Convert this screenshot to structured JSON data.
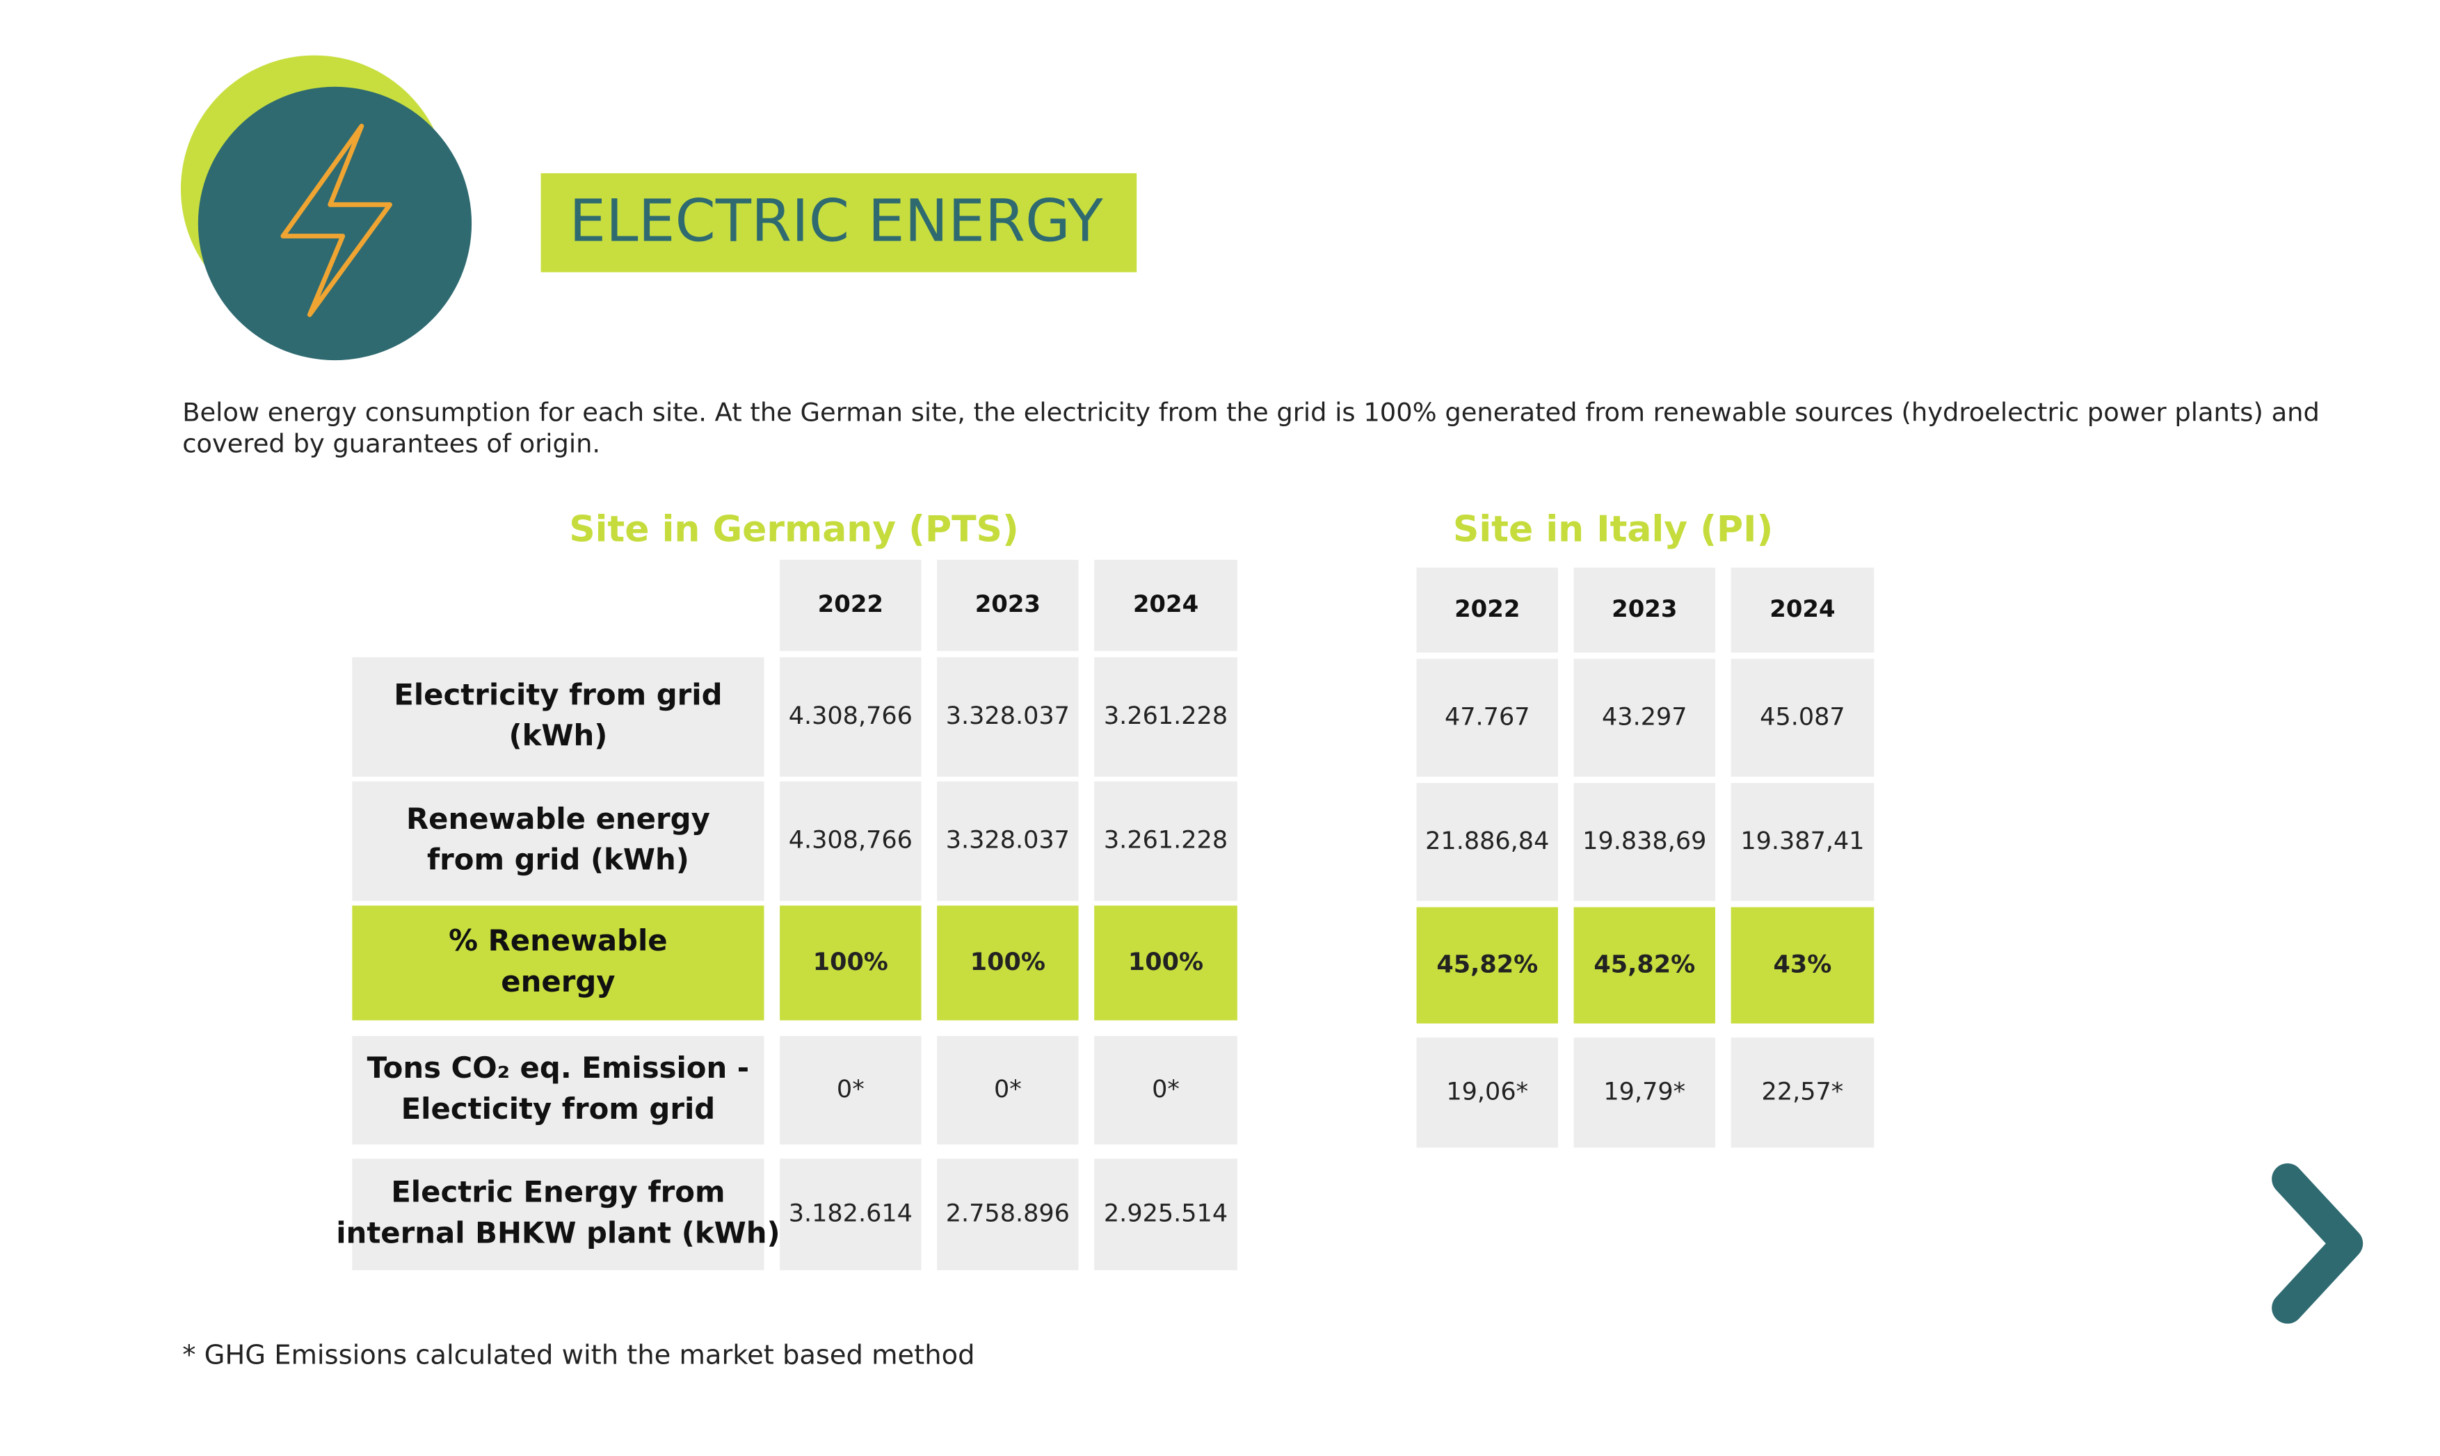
{
  "header": {
    "title": "ELECTRIC ENERGY"
  },
  "intro": [
    "Below energy consumption for each site. At the German site, the electricity from the grid is 100% generated from renewable sources (hydroelectric power plants) and",
    "covered by guarantees of origin."
  ],
  "germany": {
    "title": "Site in Germany (PTS)",
    "years": [
      "2022",
      "2023",
      "2024"
    ],
    "rows": [
      {
        "label": [
          "Electricity from grid",
          "(kWh)"
        ],
        "values": [
          "4.308,766",
          "3.328.037",
          "3.261.228"
        ]
      },
      {
        "label": [
          "Renewable energy",
          "from grid (kWh)"
        ],
        "values": [
          "4.308,766",
          "3.328.037",
          "3.261.228"
        ]
      },
      {
        "label": [
          "% Renewable",
          "energy"
        ],
        "values": [
          "100%",
          "100%",
          "100%"
        ]
      },
      {
        "label": [
          "Tons CO₂ eq. Emission -",
          "Electicity from grid"
        ],
        "values": [
          "0*",
          "0*",
          "0*"
        ]
      },
      {
        "label": [
          "Electric Energy from",
          "internal BHKW plant (kWh)"
        ],
        "values": [
          "3.182.614",
          "2.758.896",
          "2.925.514"
        ]
      }
    ]
  },
  "italy": {
    "title": "Site in Italy (PI)",
    "years": [
      "2022",
      "2023",
      "2024"
    ],
    "rows": [
      {
        "values": [
          "47.767",
          "43.297",
          "45.087"
        ]
      },
      {
        "values": [
          "21.886,84",
          "19.838,69",
          "19.387,41"
        ]
      },
      {
        "values": [
          "45,82%",
          "45,82%",
          "43%"
        ]
      },
      {
        "values": [
          "19,06*",
          "19,79*",
          "22,57*"
        ]
      }
    ]
  },
  "footnote": "* GHG Emissions calculated with the market based method"
}
